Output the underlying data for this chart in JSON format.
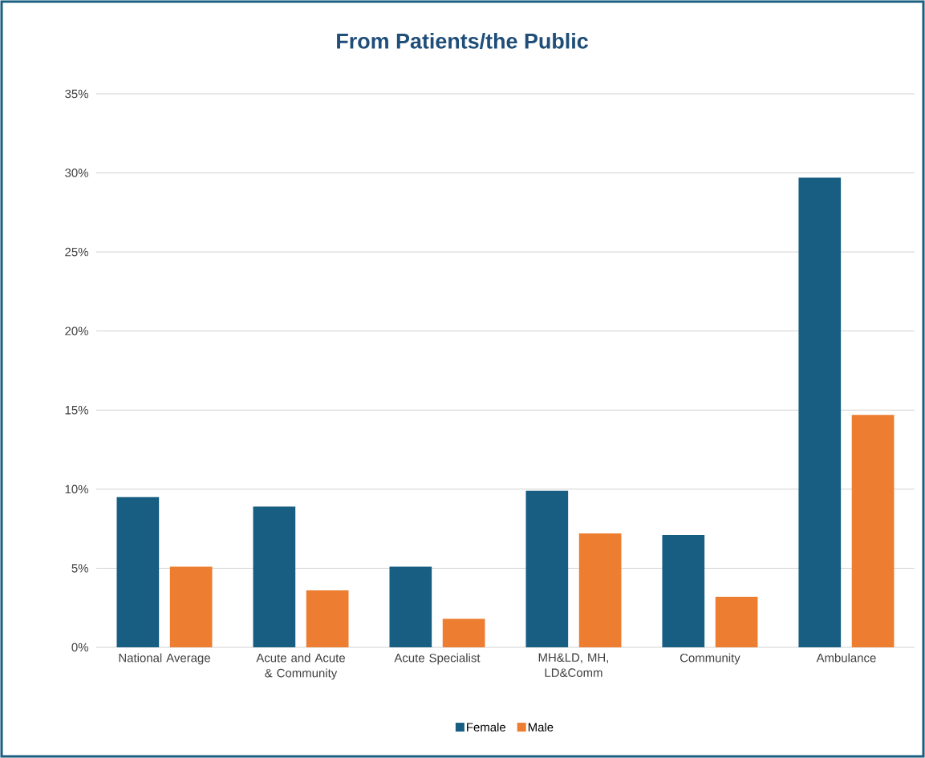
{
  "chart_data": {
    "type": "bar",
    "title": "From Patients/the Public",
    "categories": [
      "National Average",
      "Acute and Acute & Community",
      "Acute Specialist",
      "MH&LD, MH, LD&Comm",
      "Community",
      "Ambulance"
    ],
    "series": [
      {
        "name": "Female",
        "color": "#175e82",
        "values": [
          9.5,
          8.9,
          5.1,
          9.9,
          7.1,
          29.7
        ]
      },
      {
        "name": "Male",
        "color": "#ed7d31",
        "values": [
          5.1,
          3.6,
          1.8,
          7.2,
          3.2,
          14.7
        ]
      }
    ],
    "ylim": [
      0,
      35
    ],
    "yticks": [
      {
        "value": 0,
        "label": "0%"
      },
      {
        "value": 5,
        "label": "5%"
      },
      {
        "value": 10,
        "label": "10%"
      },
      {
        "value": 15,
        "label": "15%"
      },
      {
        "value": 20,
        "label": "20%"
      },
      {
        "value": 25,
        "label": "25%"
      },
      {
        "value": 30,
        "label": "30%"
      },
      {
        "value": 35,
        "label": "35%"
      }
    ],
    "grid": "y",
    "legend": "bottom"
  }
}
